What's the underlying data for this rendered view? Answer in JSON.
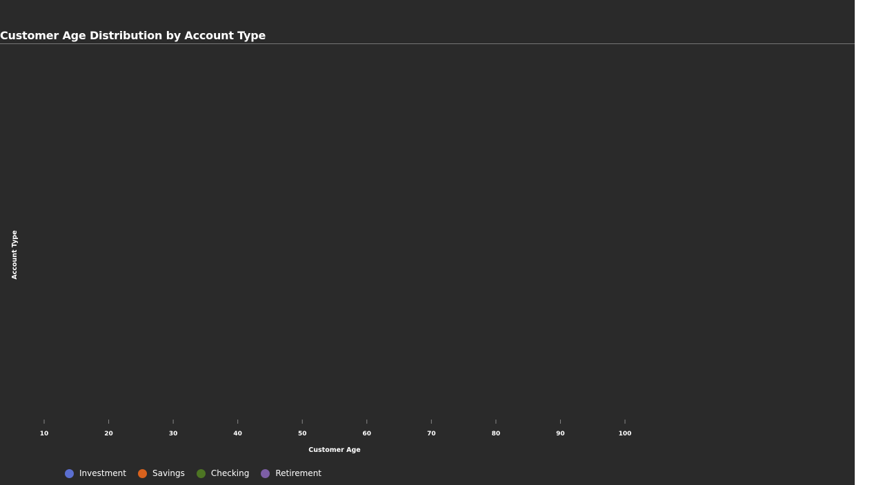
{
  "chart_data": {
    "type": "scatter",
    "title": "Customer Age Distribution by Account Type",
    "xlabel": "Customer Age",
    "ylabel": "Account Type",
    "x_ticks": [
      10,
      20,
      30,
      40,
      50,
      60,
      70,
      80,
      90,
      100
    ],
    "xlim": [
      10,
      100
    ],
    "grid": false,
    "legend_placement": "bottom-left",
    "series": [
      {
        "name": "Investment",
        "color": "#5b6fd0",
        "values": []
      },
      {
        "name": "Savings",
        "color": "#d9621d",
        "values": []
      },
      {
        "name": "Checking",
        "color": "#4d7523",
        "values": []
      },
      {
        "name": "Retirement",
        "color": "#7d5ea6",
        "values": []
      }
    ]
  }
}
